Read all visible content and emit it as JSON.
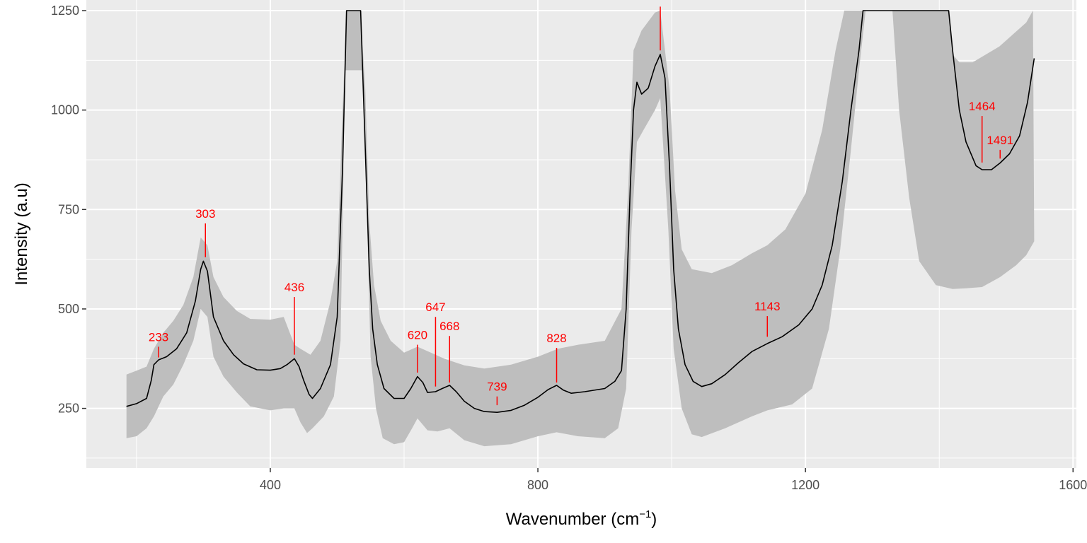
{
  "chart_data": {
    "type": "line",
    "xlabel": "Wavenumber (cm",
    "xlabel_sup": "−1",
    "xlabel_close": ")",
    "ylabel": "Intensity (a.u)",
    "xlim": [
      125,
      1605
    ],
    "ylim": [
      100,
      1250
    ],
    "x_ticks": [
      400,
      800,
      1200,
      1600
    ],
    "y_ticks": [
      250,
      500,
      750,
      1000,
      1250
    ],
    "x_tick_labels": [
      "400",
      "800",
      "1200",
      "1600"
    ],
    "y_tick_labels": [
      "250",
      "500",
      "750",
      "1000",
      "1250"
    ],
    "grid": true,
    "legend": "none",
    "colors": {
      "panel": "#ebebeb",
      "grid": "#ffffff",
      "ribbon": "#bebebe",
      "line": "#000000",
      "peak": "#ff0000"
    },
    "mean": [
      [
        185,
        255
      ],
      [
        200,
        262
      ],
      [
        215,
        275
      ],
      [
        222,
        320
      ],
      [
        226,
        360
      ],
      [
        233,
        372
      ],
      [
        245,
        380
      ],
      [
        260,
        400
      ],
      [
        275,
        440
      ],
      [
        288,
        520
      ],
      [
        296,
        600
      ],
      [
        300,
        620
      ],
      [
        306,
        595
      ],
      [
        315,
        480
      ],
      [
        330,
        420
      ],
      [
        345,
        385
      ],
      [
        360,
        362
      ],
      [
        380,
        347
      ],
      [
        400,
        346
      ],
      [
        415,
        350
      ],
      [
        425,
        360
      ],
      [
        436,
        375
      ],
      [
        443,
        355
      ],
      [
        450,
        320
      ],
      [
        458,
        285
      ],
      [
        463,
        275
      ],
      [
        475,
        300
      ],
      [
        490,
        360
      ],
      [
        500,
        480
      ],
      [
        508,
        850
      ],
      [
        514,
        1250
      ],
      [
        535,
        1250
      ],
      [
        542,
        900
      ],
      [
        548,
        600
      ],
      [
        553,
        450
      ],
      [
        560,
        360
      ],
      [
        570,
        300
      ],
      [
        585,
        275
      ],
      [
        600,
        275
      ],
      [
        610,
        300
      ],
      [
        620,
        330
      ],
      [
        628,
        315
      ],
      [
        635,
        290
      ],
      [
        647,
        292
      ],
      [
        657,
        300
      ],
      [
        668,
        308
      ],
      [
        678,
        292
      ],
      [
        690,
        268
      ],
      [
        705,
        250
      ],
      [
        720,
        242
      ],
      [
        739,
        240
      ],
      [
        760,
        245
      ],
      [
        780,
        258
      ],
      [
        800,
        278
      ],
      [
        815,
        297
      ],
      [
        828,
        308
      ],
      [
        838,
        296
      ],
      [
        850,
        288
      ],
      [
        870,
        292
      ],
      [
        900,
        300
      ],
      [
        915,
        318
      ],
      [
        925,
        345
      ],
      [
        932,
        500
      ],
      [
        938,
        800
      ],
      [
        943,
        1000
      ],
      [
        948,
        1070
      ],
      [
        955,
        1040
      ],
      [
        965,
        1055
      ],
      [
        975,
        1110
      ],
      [
        983,
        1140
      ],
      [
        990,
        1080
      ],
      [
        997,
        850
      ],
      [
        1003,
        600
      ],
      [
        1010,
        450
      ],
      [
        1020,
        360
      ],
      [
        1032,
        318
      ],
      [
        1045,
        305
      ],
      [
        1060,
        312
      ],
      [
        1080,
        335
      ],
      [
        1100,
        365
      ],
      [
        1120,
        393
      ],
      [
        1143,
        413
      ],
      [
        1165,
        430
      ],
      [
        1190,
        460
      ],
      [
        1210,
        500
      ],
      [
        1225,
        560
      ],
      [
        1240,
        660
      ],
      [
        1255,
        820
      ],
      [
        1268,
        1000
      ],
      [
        1280,
        1150
      ],
      [
        1286,
        1250
      ],
      [
        1414,
        1250
      ],
      [
        1420,
        1150
      ],
      [
        1430,
        1000
      ],
      [
        1440,
        920
      ],
      [
        1455,
        860
      ],
      [
        1464,
        850
      ],
      [
        1478,
        850
      ],
      [
        1491,
        867
      ],
      [
        1505,
        890
      ],
      [
        1520,
        935
      ],
      [
        1532,
        1020
      ],
      [
        1542,
        1130
      ]
    ],
    "ribbon_upper": [
      [
        185,
        335
      ],
      [
        200,
        345
      ],
      [
        215,
        355
      ],
      [
        226,
        400
      ],
      [
        240,
        440
      ],
      [
        255,
        470
      ],
      [
        270,
        510
      ],
      [
        285,
        580
      ],
      [
        296,
        680
      ],
      [
        306,
        660
      ],
      [
        315,
        580
      ],
      [
        330,
        530
      ],
      [
        350,
        495
      ],
      [
        370,
        475
      ],
      [
        400,
        473
      ],
      [
        420,
        480
      ],
      [
        436,
        410
      ],
      [
        445,
        400
      ],
      [
        460,
        385
      ],
      [
        475,
        420
      ],
      [
        490,
        520
      ],
      [
        500,
        620
      ],
      [
        508,
        1000
      ],
      [
        514,
        1250
      ],
      [
        535,
        1250
      ],
      [
        542,
        1050
      ],
      [
        548,
        720
      ],
      [
        555,
        560
      ],
      [
        565,
        470
      ],
      [
        580,
        420
      ],
      [
        600,
        390
      ],
      [
        620,
        405
      ],
      [
        640,
        390
      ],
      [
        660,
        375
      ],
      [
        690,
        358
      ],
      [
        720,
        350
      ],
      [
        760,
        360
      ],
      [
        800,
        380
      ],
      [
        830,
        400
      ],
      [
        860,
        410
      ],
      [
        900,
        420
      ],
      [
        925,
        500
      ],
      [
        935,
        800
      ],
      [
        943,
        1150
      ],
      [
        955,
        1200
      ],
      [
        975,
        1245
      ],
      [
        983,
        1250
      ],
      [
        997,
        1050
      ],
      [
        1005,
        800
      ],
      [
        1015,
        650
      ],
      [
        1030,
        600
      ],
      [
        1060,
        590
      ],
      [
        1090,
        610
      ],
      [
        1120,
        640
      ],
      [
        1143,
        660
      ],
      [
        1170,
        700
      ],
      [
        1200,
        790
      ],
      [
        1225,
        950
      ],
      [
        1245,
        1150
      ],
      [
        1258,
        1250
      ],
      [
        1414,
        1250
      ],
      [
        1420,
        1140
      ],
      [
        1430,
        1120
      ],
      [
        1450,
        1120
      ],
      [
        1470,
        1140
      ],
      [
        1490,
        1160
      ],
      [
        1510,
        1190
      ],
      [
        1530,
        1220
      ],
      [
        1540,
        1250
      ]
    ],
    "ribbon_lower": [
      [
        185,
        175
      ],
      [
        200,
        180
      ],
      [
        215,
        200
      ],
      [
        226,
        230
      ],
      [
        240,
        280
      ],
      [
        255,
        310
      ],
      [
        270,
        360
      ],
      [
        285,
        420
      ],
      [
        296,
        500
      ],
      [
        306,
        480
      ],
      [
        315,
        380
      ],
      [
        330,
        330
      ],
      [
        350,
        290
      ],
      [
        370,
        255
      ],
      [
        400,
        245
      ],
      [
        420,
        250
      ],
      [
        436,
        250
      ],
      [
        445,
        215
      ],
      [
        455,
        188
      ],
      [
        463,
        200
      ],
      [
        480,
        230
      ],
      [
        495,
        280
      ],
      [
        505,
        420
      ],
      [
        512,
        1100
      ],
      [
        538,
        1100
      ],
      [
        545,
        700
      ],
      [
        550,
        380
      ],
      [
        558,
        250
      ],
      [
        568,
        175
      ],
      [
        585,
        160
      ],
      [
        600,
        165
      ],
      [
        612,
        200
      ],
      [
        620,
        225
      ],
      [
        635,
        195
      ],
      [
        650,
        192
      ],
      [
        668,
        200
      ],
      [
        690,
        170
      ],
      [
        720,
        155
      ],
      [
        760,
        160
      ],
      [
        800,
        180
      ],
      [
        828,
        190
      ],
      [
        860,
        180
      ],
      [
        900,
        175
      ],
      [
        920,
        200
      ],
      [
        932,
        300
      ],
      [
        940,
        700
      ],
      [
        948,
        920
      ],
      [
        958,
        950
      ],
      [
        975,
        1000
      ],
      [
        983,
        1030
      ],
      [
        995,
        700
      ],
      [
        1003,
        400
      ],
      [
        1015,
        250
      ],
      [
        1030,
        185
      ],
      [
        1045,
        178
      ],
      [
        1080,
        200
      ],
      [
        1120,
        230
      ],
      [
        1143,
        245
      ],
      [
        1180,
        260
      ],
      [
        1210,
        300
      ],
      [
        1235,
        450
      ],
      [
        1252,
        650
      ],
      [
        1268,
        900
      ],
      [
        1280,
        1100
      ],
      [
        1290,
        1250
      ],
      [
        1330,
        1250
      ],
      [
        1340,
        1000
      ],
      [
        1355,
        780
      ],
      [
        1370,
        620
      ],
      [
        1395,
        560
      ],
      [
        1420,
        550
      ],
      [
        1440,
        552
      ],
      [
        1464,
        555
      ],
      [
        1491,
        580
      ],
      [
        1515,
        610
      ],
      [
        1530,
        635
      ],
      [
        1542,
        670
      ]
    ],
    "peaks": [
      {
        "label": "233",
        "x": 233,
        "y_top": 405,
        "y_bottom": 378
      },
      {
        "label": "303",
        "x": 303,
        "y_top": 715,
        "y_bottom": 630
      },
      {
        "label": "436",
        "x": 436,
        "y_top": 530,
        "y_bottom": 385
      },
      {
        "label": "620",
        "x": 620,
        "y_top": 410,
        "y_bottom": 340
      },
      {
        "label": "647",
        "x": 647,
        "y_top": 480,
        "y_bottom": 305
      },
      {
        "label": "668",
        "x": 668,
        "y_top": 432,
        "y_bottom": 315
      },
      {
        "label": "739",
        "x": 739,
        "y_top": 280,
        "y_bottom": 258
      },
      {
        "label": "828",
        "x": 828,
        "y_top": 402,
        "y_bottom": 315
      },
      {
        "label": "1143",
        "x": 1143,
        "y_top": 482,
        "y_bottom": 430
      },
      {
        "label": "1464",
        "x": 1464,
        "y_top": 985,
        "y_bottom": 868
      },
      {
        "label": "1491",
        "x": 1491,
        "y_top": 900,
        "y_bottom": 878
      },
      {
        "label": "",
        "x": 983,
        "y_top": 1260,
        "y_bottom": 1150
      }
    ]
  }
}
